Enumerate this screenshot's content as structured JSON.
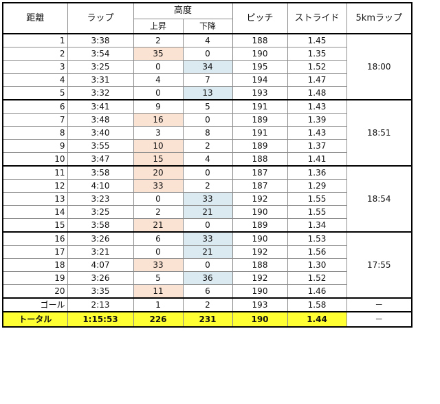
{
  "headers": {
    "distance": "距離",
    "lap": "ラップ",
    "elevation": "高度",
    "ascent": "上昇",
    "descent": "下降",
    "pitch": "ピッチ",
    "stride": "ストライド",
    "lap5k": "5kmラップ"
  },
  "blocks": [
    {
      "split": "18:00",
      "rows": [
        {
          "km": "1",
          "lap": "3:38",
          "up": "2",
          "down": "4",
          "pitch": "188",
          "stride": "1.45",
          "up_hl": false,
          "down_hl": false
        },
        {
          "km": "2",
          "lap": "3:54",
          "up": "35",
          "down": "0",
          "pitch": "190",
          "stride": "1.35",
          "up_hl": true,
          "down_hl": false
        },
        {
          "km": "3",
          "lap": "3:25",
          "up": "0",
          "down": "34",
          "pitch": "195",
          "stride": "1.52",
          "up_hl": false,
          "down_hl": true
        },
        {
          "km": "4",
          "lap": "3:31",
          "up": "4",
          "down": "7",
          "pitch": "194",
          "stride": "1.47",
          "up_hl": false,
          "down_hl": false
        },
        {
          "km": "5",
          "lap": "3:32",
          "up": "0",
          "down": "13",
          "pitch": "193",
          "stride": "1.48",
          "up_hl": false,
          "down_hl": true
        }
      ]
    },
    {
      "split": "18:51",
      "rows": [
        {
          "km": "6",
          "lap": "3:41",
          "up": "9",
          "down": "5",
          "pitch": "191",
          "stride": "1.43",
          "up_hl": false,
          "down_hl": false
        },
        {
          "km": "7",
          "lap": "3:48",
          "up": "16",
          "down": "0",
          "pitch": "189",
          "stride": "1.39",
          "up_hl": true,
          "down_hl": false
        },
        {
          "km": "8",
          "lap": "3:40",
          "up": "3",
          "down": "8",
          "pitch": "191",
          "stride": "1.43",
          "up_hl": false,
          "down_hl": false
        },
        {
          "km": "9",
          "lap": "3:55",
          "up": "10",
          "down": "2",
          "pitch": "189",
          "stride": "1.37",
          "up_hl": true,
          "down_hl": false
        },
        {
          "km": "10",
          "lap": "3:47",
          "up": "15",
          "down": "4",
          "pitch": "188",
          "stride": "1.41",
          "up_hl": true,
          "down_hl": false
        }
      ]
    },
    {
      "split": "18:54",
      "rows": [
        {
          "km": "11",
          "lap": "3:58",
          "up": "20",
          "down": "0",
          "pitch": "187",
          "stride": "1.36",
          "up_hl": true,
          "down_hl": false
        },
        {
          "km": "12",
          "lap": "4:10",
          "up": "33",
          "down": "2",
          "pitch": "187",
          "stride": "1.29",
          "up_hl": true,
          "down_hl": false
        },
        {
          "km": "13",
          "lap": "3:23",
          "up": "0",
          "down": "33",
          "pitch": "192",
          "stride": "1.55",
          "up_hl": false,
          "down_hl": true
        },
        {
          "km": "14",
          "lap": "3:25",
          "up": "2",
          "down": "21",
          "pitch": "190",
          "stride": "1.55",
          "up_hl": false,
          "down_hl": true
        },
        {
          "km": "15",
          "lap": "3:58",
          "up": "21",
          "down": "0",
          "pitch": "189",
          "stride": "1.34",
          "up_hl": true,
          "down_hl": false
        }
      ]
    },
    {
      "split": "17:55",
      "rows": [
        {
          "km": "16",
          "lap": "3:26",
          "up": "6",
          "down": "33",
          "pitch": "190",
          "stride": "1.53",
          "up_hl": false,
          "down_hl": true
        },
        {
          "km": "17",
          "lap": "3:21",
          "up": "0",
          "down": "21",
          "pitch": "192",
          "stride": "1.56",
          "up_hl": false,
          "down_hl": true
        },
        {
          "km": "18",
          "lap": "4:07",
          "up": "33",
          "down": "0",
          "pitch": "188",
          "stride": "1.30",
          "up_hl": true,
          "down_hl": false
        },
        {
          "km": "19",
          "lap": "3:26",
          "up": "5",
          "down": "36",
          "pitch": "192",
          "stride": "1.52",
          "up_hl": false,
          "down_hl": true
        },
        {
          "km": "20",
          "lap": "3:35",
          "up": "11",
          "down": "6",
          "pitch": "190",
          "stride": "1.46",
          "up_hl": true,
          "down_hl": false
        }
      ]
    }
  ],
  "goal": {
    "km": "ゴール",
    "lap": "2:13",
    "up": "1",
    "down": "2",
    "pitch": "193",
    "stride": "1.58",
    "split": "－"
  },
  "total": {
    "km": "トータル",
    "lap": "1:15:53",
    "up": "226",
    "down": "231",
    "pitch": "190",
    "stride": "1.44",
    "split": "－"
  },
  "colors": {
    "ascent_highlight": "#fbe3d4",
    "descent_highlight": "#dbe9f1",
    "total_row": "#ffff33"
  }
}
